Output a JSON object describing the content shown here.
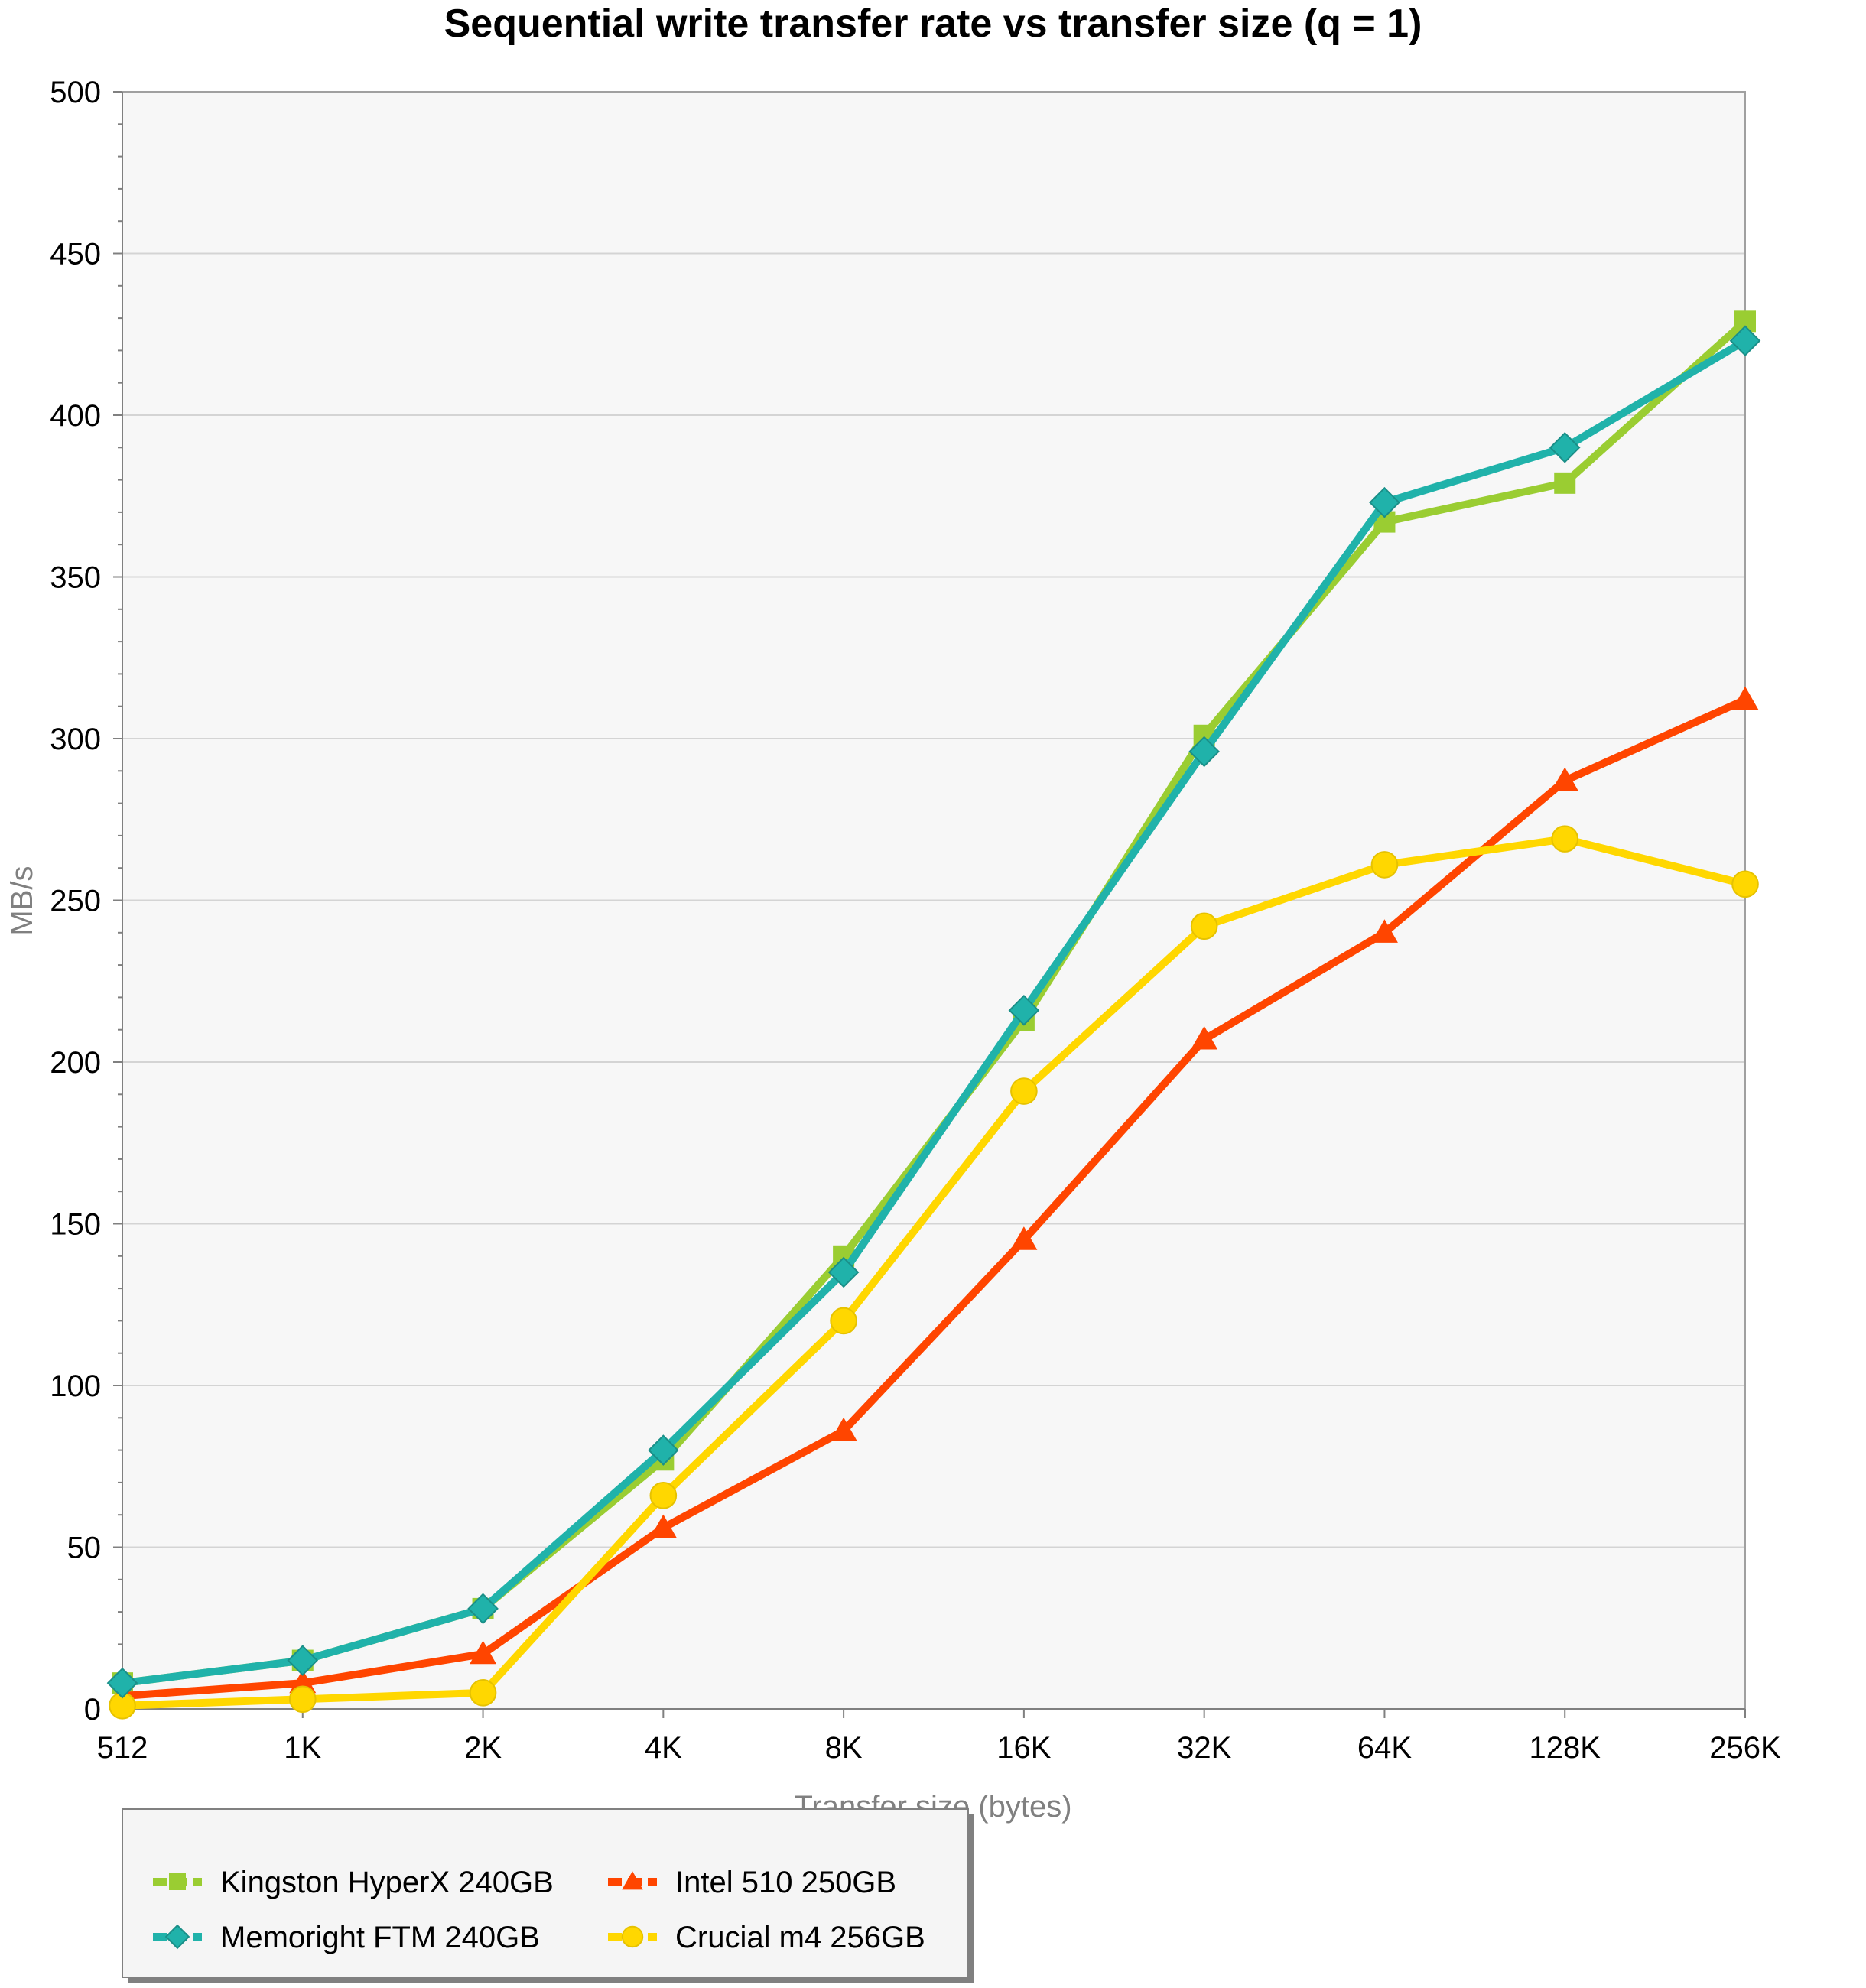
{
  "chart_data": {
    "type": "line",
    "title": "Sequential write transfer rate vs transfer size (q = 1)",
    "xlabel": "Transfer size (bytes)",
    "ylabel": "MB/s",
    "categories": [
      "512",
      "1K",
      "2K",
      "4K",
      "8K",
      "16K",
      "32K",
      "64K",
      "128K",
      "256K"
    ],
    "ylim": [
      0,
      500
    ],
    "yticks": [
      0,
      50,
      100,
      150,
      200,
      250,
      300,
      350,
      400,
      450,
      500
    ],
    "grid": true,
    "legend_position": "bottom-left",
    "series": [
      {
        "name": "Kingston HyperX 240GB",
        "color": "#9acd32",
        "marker": "square",
        "values": [
          8,
          15,
          31,
          77,
          140,
          213,
          301,
          367,
          379,
          429
        ]
      },
      {
        "name": "Memoright FTM 240GB",
        "color": "#20b2aa",
        "marker": "diamond",
        "values": [
          8,
          15,
          31,
          80,
          135,
          216,
          296,
          373,
          390,
          423
        ]
      },
      {
        "name": "Intel 510 250GB",
        "color": "#ff4500",
        "marker": "triangle",
        "values": [
          4,
          8,
          17,
          56,
          86,
          145,
          207,
          240,
          287,
          312
        ]
      },
      {
        "name": "Crucial m4 256GB",
        "color": "#ffd700",
        "marker": "circle",
        "values": [
          1,
          3,
          5,
          66,
          120,
          191,
          242,
          261,
          269,
          255
        ]
      }
    ]
  }
}
